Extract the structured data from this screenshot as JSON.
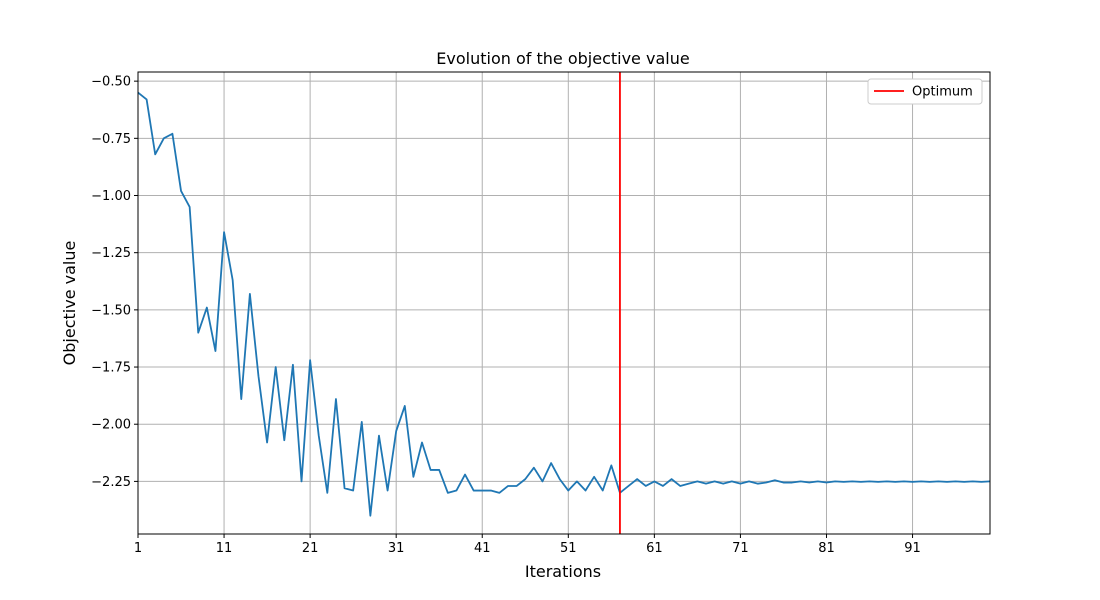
{
  "chart_data": {
    "type": "line",
    "title": "Evolution of the objective value",
    "xlabel": "Iterations",
    "ylabel": "Objective value",
    "xlim": [
      1,
      100
    ],
    "ylim": [
      -2.48,
      -0.46
    ],
    "x_ticks": [
      1,
      11,
      21,
      31,
      41,
      51,
      61,
      71,
      81,
      91
    ],
    "y_ticks": [
      -0.5,
      -0.75,
      -1.0,
      -1.25,
      -1.5,
      -1.75,
      -2.0,
      -2.25
    ],
    "y_tick_labels": [
      "−0.50",
      "−0.75",
      "−1.00",
      "−1.25",
      "−1.50",
      "−1.75",
      "−2.00",
      "−2.25"
    ],
    "grid": true,
    "legend_position": "top-right",
    "series": [
      {
        "color": "#1f77b4",
        "x": [
          1,
          2,
          3,
          4,
          5,
          6,
          7,
          8,
          9,
          10,
          11,
          12,
          13,
          14,
          15,
          16,
          17,
          18,
          19,
          20,
          21,
          22,
          23,
          24,
          25,
          26,
          27,
          28,
          29,
          30,
          31,
          32,
          33,
          34,
          35,
          36,
          37,
          38,
          39,
          40,
          41,
          42,
          43,
          44,
          45,
          46,
          47,
          48,
          49,
          50,
          51,
          52,
          53,
          54,
          55,
          56,
          57,
          58,
          59,
          60,
          61,
          62,
          63,
          64,
          65,
          66,
          67,
          68,
          69,
          70,
          71,
          72,
          73,
          74,
          75,
          76,
          77,
          78,
          79,
          80,
          81,
          82,
          83,
          84,
          85,
          86,
          87,
          88,
          89,
          90,
          91,
          92,
          93,
          94,
          95,
          96,
          97,
          98,
          99,
          100
        ],
        "y": [
          -0.55,
          -0.58,
          -0.82,
          -0.75,
          -0.73,
          -0.98,
          -1.05,
          -1.6,
          -1.49,
          -1.68,
          -1.16,
          -1.37,
          -1.89,
          -1.43,
          -1.79,
          -2.08,
          -1.75,
          -2.07,
          -1.74,
          -2.25,
          -1.72,
          -2.05,
          -2.3,
          -1.89,
          -2.28,
          -2.29,
          -1.99,
          -2.4,
          -2.05,
          -2.29,
          -2.03,
          -1.92,
          -2.23,
          -2.08,
          -2.2,
          -2.2,
          -2.3,
          -2.29,
          -2.22,
          -2.29,
          -2.29,
          -2.29,
          -2.3,
          -2.27,
          -2.27,
          -2.24,
          -2.19,
          -2.25,
          -2.17,
          -2.24,
          -2.29,
          -2.25,
          -2.29,
          -2.23,
          -2.29,
          -2.18,
          -2.3,
          -2.27,
          -2.24,
          -2.27,
          -2.25,
          -2.27,
          -2.24,
          -2.27,
          -2.26,
          -2.25,
          -2.26,
          -2.25,
          -2.26,
          -2.25,
          -2.26,
          -2.25,
          -2.26,
          -2.255,
          -2.245,
          -2.255,
          -2.255,
          -2.25,
          -2.255,
          -2.25,
          -2.255,
          -2.25,
          -2.252,
          -2.25,
          -2.252,
          -2.25,
          -2.252,
          -2.25,
          -2.252,
          -2.25,
          -2.252,
          -2.25,
          -2.252,
          -2.25,
          -2.252,
          -2.25,
          -2.252,
          -2.25,
          -2.252,
          -2.25
        ]
      }
    ],
    "reference_line": {
      "name": "Optimum",
      "x": 57,
      "color": "#ff0000"
    }
  }
}
